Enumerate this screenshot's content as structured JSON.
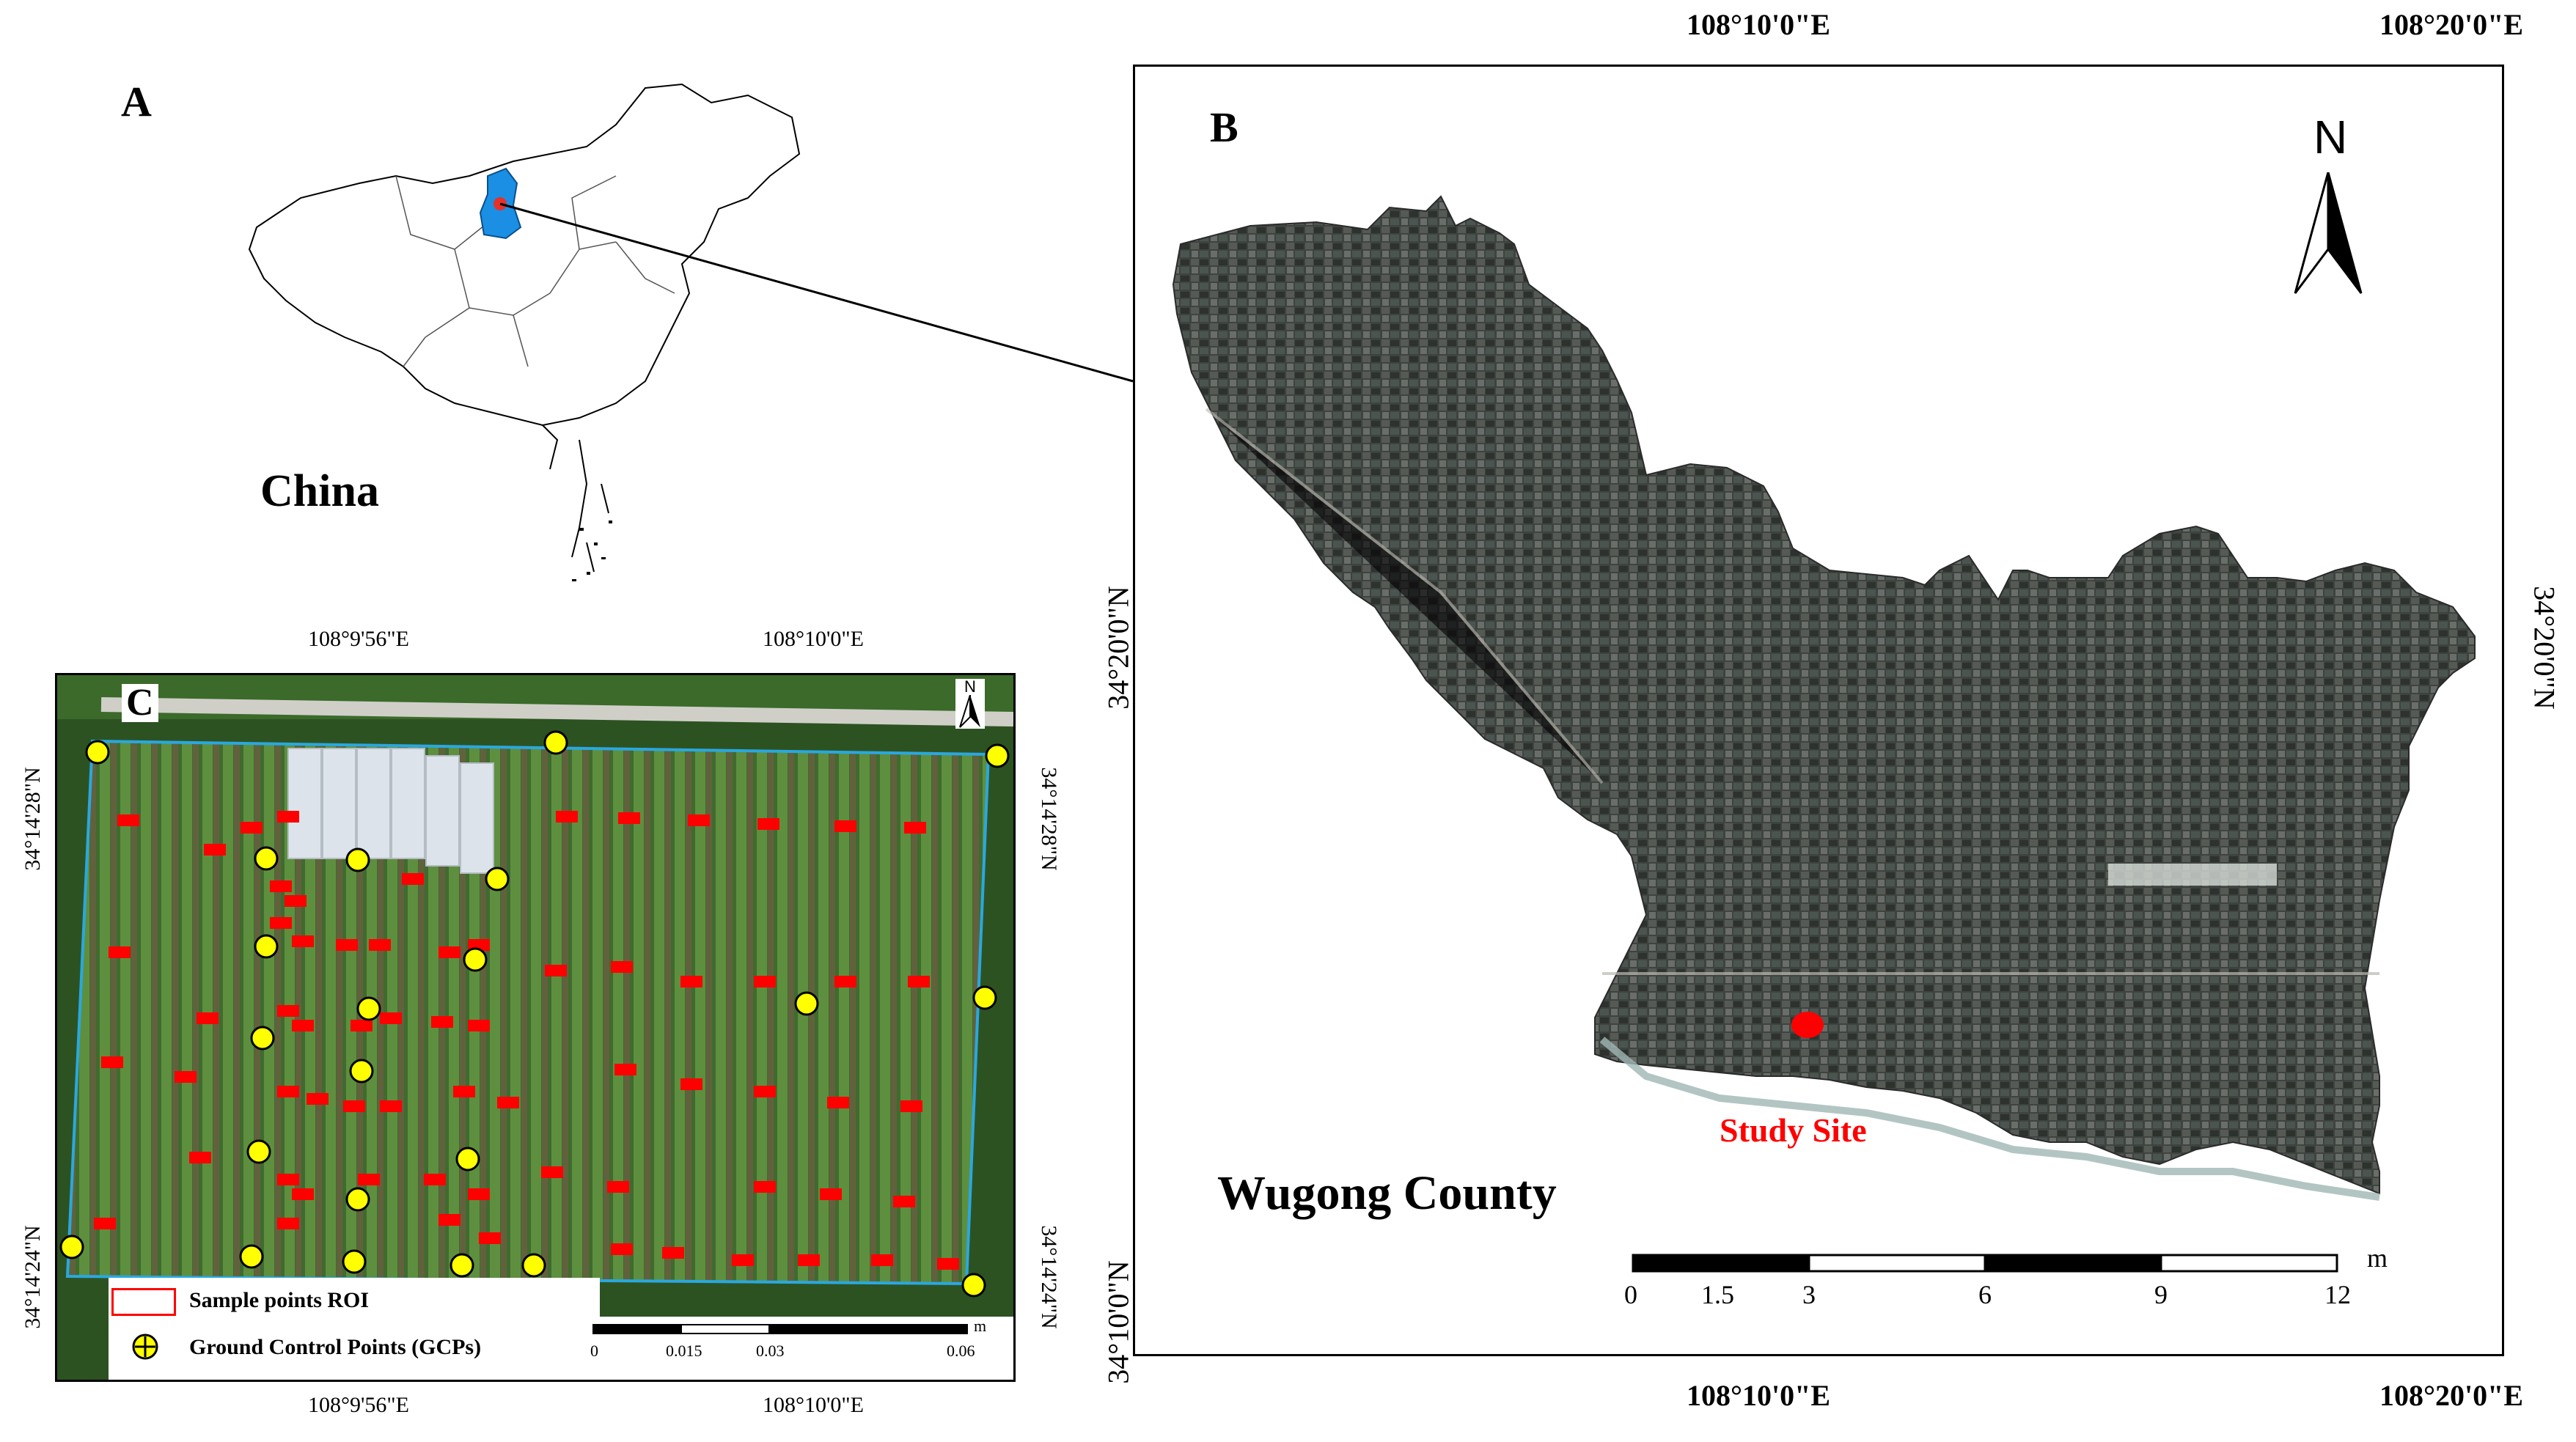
{
  "panel_a": {
    "label": "A",
    "country_label": "China"
  },
  "panel_b": {
    "label": "B",
    "county_label": "Wugong County",
    "study_site_label": "Study Site",
    "north_label": "N",
    "top_lon_1": "108°10'0\"E",
    "top_lon_2": "108°20'0\"E",
    "bottom_lon_1": "108°10'0\"E",
    "bottom_lon_2": "108°20'0\"E",
    "left_lat": "34°20'0\"N",
    "left_lat_bottom": "34°10'0\"N",
    "right_lat": "34°20'0\"N",
    "scale_unit": "m",
    "scale_ticks": [
      "0",
      "1.5",
      "3",
      "6",
      "9",
      "12"
    ]
  },
  "panel_c": {
    "label": "C",
    "north_label": "N",
    "top_lon_1": "108°9'56\"E",
    "top_lon_2": "108°10'0\"E",
    "bottom_lon_1": "108°9'56\"E",
    "bottom_lon_2": "108°10'0\"E",
    "left_lat_1": "34°14'28\"N",
    "left_lat_2": "34°14'24\"N",
    "right_lat_1": "34°14'28\"N",
    "right_lat_2": "34°14'24\"N",
    "legend_roi": "Sample points ROI",
    "legend_gcp": "Ground Control Points (GCPs)",
    "scale_unit": "m",
    "scale_ticks": [
      "0",
      "0.015",
      "0.03",
      "0.06"
    ]
  },
  "colors": {
    "roi_red": "#ff0000",
    "gcp_yellow": "#ffff00",
    "boundary_blue": "#29a8e0",
    "province_blue": "#1a8fe3",
    "study_site_red": "#ff0000"
  }
}
